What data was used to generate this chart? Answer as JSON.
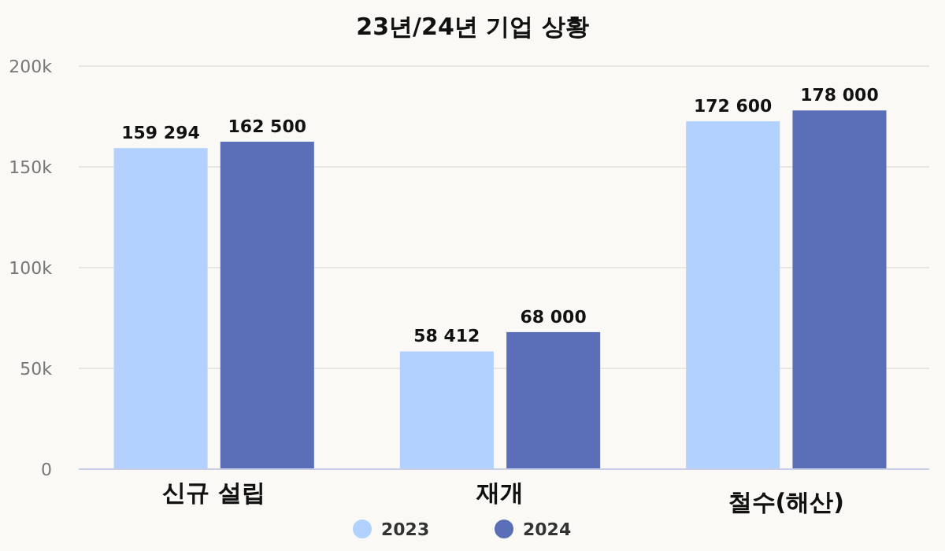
{
  "chart_data": {
    "type": "bar",
    "title": "23년/24년 기업 상황",
    "categories": [
      "신규 설립",
      "재개",
      "철수(해산)"
    ],
    "series": [
      {
        "name": "2023",
        "color": "#b3d1fe",
        "values": [
          159294,
          58412,
          172600
        ],
        "value_labels": [
          "159 294",
          "58 412",
          "172 600"
        ]
      },
      {
        "name": "2024",
        "color": "#5a6fb8",
        "values": [
          162500,
          68000,
          178000
        ],
        "value_labels": [
          "162 500",
          "68 000",
          "178 000"
        ]
      }
    ],
    "ylim": [
      0,
      200000
    ],
    "yticks": [
      {
        "value": 0,
        "label": "0"
      },
      {
        "value": 50000,
        "label": "50k"
      },
      {
        "value": 100000,
        "label": "100k"
      },
      {
        "value": 150000,
        "label": "150k"
      },
      {
        "value": 200000,
        "label": "200k"
      }
    ],
    "grid": "y",
    "legend": "bottom"
  }
}
